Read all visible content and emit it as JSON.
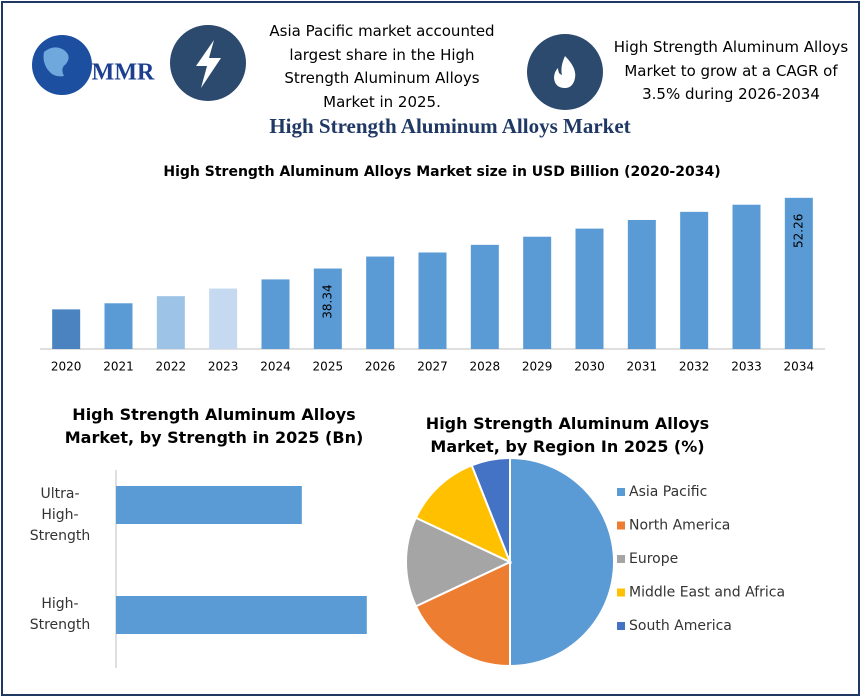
{
  "header": {
    "logo": "MMR",
    "note_left": "Asia Pacific market accounted largest share in the High Strength Aluminum Alloys Market in 2025.",
    "note_right": "High Strength Aluminum Alloys Market to grow at a CAGR of 3.5% during 2026-2034",
    "title": "High Strength Aluminum Alloys Market"
  },
  "chart_data": [
    {
      "type": "bar",
      "title": "High Strength Aluminum Alloys Market size in USD Billion (2020-2034)",
      "categories": [
        "2020",
        "2021",
        "2022",
        "2023",
        "2024",
        "2025",
        "2026",
        "2027",
        "2028",
        "2029",
        "2030",
        "2031",
        "2032",
        "2033",
        "2034"
      ],
      "values": [
        30.3,
        31.5,
        32.9,
        34.4,
        36.2,
        38.34,
        40.7,
        41.5,
        43.0,
        44.6,
        46.2,
        47.9,
        49.5,
        50.9,
        52.26
      ],
      "value_labels": [
        null,
        null,
        null,
        null,
        null,
        "38.34",
        null,
        null,
        null,
        null,
        null,
        null,
        null,
        null,
        "52.26"
      ],
      "colors": [
        "#4a83bf",
        "#5b9bd5",
        "#9dc3e6",
        "#c5d9f0",
        "#5b9bd5",
        "#5b9bd5",
        "#5b9bd5",
        "#5b9bd5",
        "#5b9bd5",
        "#5b9bd5",
        "#5b9bd5",
        "#5b9bd5",
        "#5b9bd5",
        "#5b9bd5",
        "#5b9bd5"
      ],
      "ylim": [
        22.5,
        53.8
      ]
    },
    {
      "type": "barh",
      "title": "High Strength Aluminum Alloys Market, by  Strength in 2025 (Bn)",
      "categories": [
        "Ultra-High-Strength",
        "High-Strength"
      ],
      "values": [
        16.3,
        22.0
      ],
      "color": "#5b9bd5",
      "xlim": [
        0,
        30
      ]
    },
    {
      "type": "pie",
      "title": "High Strength Aluminum Alloys Market, by Region In 2025 (%)",
      "categories": [
        "Asia Pacific",
        "North America",
        "Europe",
        "Middle East and Africa",
        "South America"
      ],
      "values": [
        50,
        18,
        14,
        12,
        6
      ],
      "colors": [
        "#5b9bd5",
        "#ed7d31",
        "#a5a5a5",
        "#ffc000",
        "#4472c4"
      ]
    }
  ]
}
